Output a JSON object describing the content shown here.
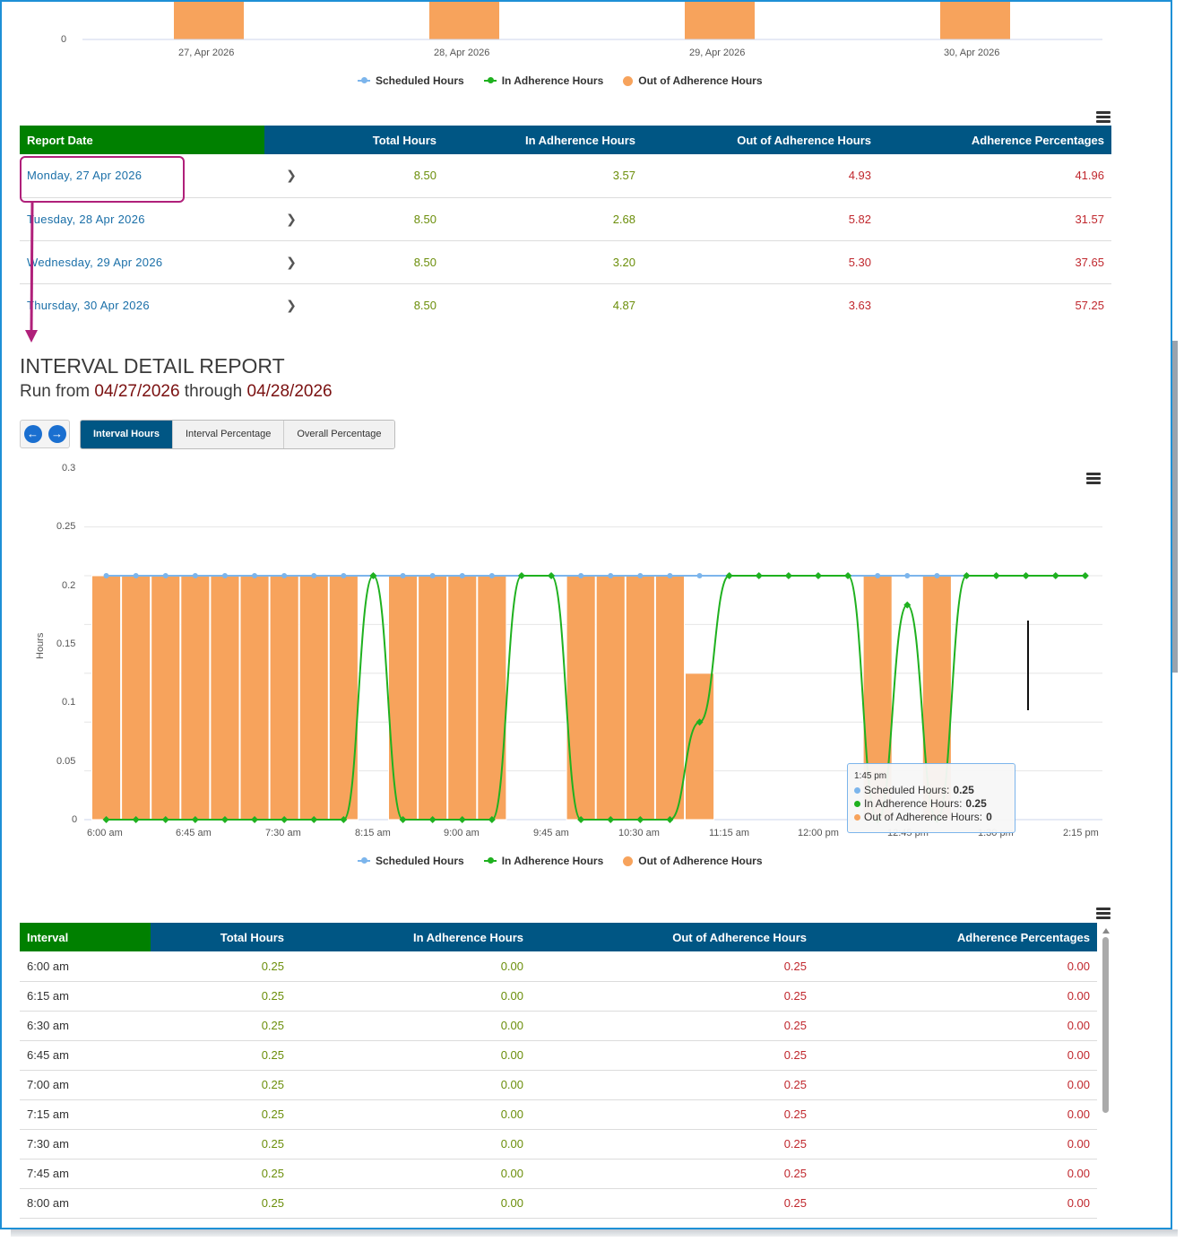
{
  "top_chart": {
    "y_tick": "0",
    "x_labels": [
      "27, Apr 2026",
      "28, Apr 2026",
      "29, Apr 2026",
      "30, Apr 2026"
    ]
  },
  "legend": {
    "scheduled": "Scheduled Hours",
    "in_adherence": "In Adherence Hours",
    "out_adherence": "Out of Adherence Hours"
  },
  "colors": {
    "scheduled": "#7cb5ec",
    "in_adherence": "#1fb11f",
    "out_adherence": "#f7a35c",
    "header_blue": "#005684",
    "header_green": "#008000"
  },
  "summary_table": {
    "headers": [
      "Report Date",
      "Total Hours",
      "In Adherence Hours",
      "Out of Adherence Hours",
      "Adherence Percentages"
    ],
    "rows": [
      {
        "date": "Monday, 27 Apr 2026",
        "total": "8.50",
        "in": "3.57",
        "out": "4.93",
        "pct": "41.96"
      },
      {
        "date": "Tuesday, 28 Apr 2026",
        "total": "8.50",
        "in": "2.68",
        "out": "5.82",
        "pct": "31.57"
      },
      {
        "date": "Wednesday, 29 Apr 2026",
        "total": "8.50",
        "in": "3.20",
        "out": "5.30",
        "pct": "37.65"
      },
      {
        "date": "Thursday, 30 Apr 2026",
        "total": "8.50",
        "in": "4.87",
        "out": "3.63",
        "pct": "57.25"
      }
    ]
  },
  "report": {
    "title": "INTERVAL DETAIL REPORT",
    "run_prefix": "Run from ",
    "start": "04/27/2026",
    "through": " through ",
    "end": "04/28/2026"
  },
  "tabs": [
    "Interval Hours",
    "Interval Percentage",
    "Overall Percentage"
  ],
  "chart_data": {
    "type": "bar",
    "ylabel": "Hours",
    "ylim": [
      0,
      0.3
    ],
    "y_ticks": [
      "0",
      "0.05",
      "0.1",
      "0.15",
      "0.2",
      "0.25",
      "0.3"
    ],
    "x_tick_labels": [
      "6:00 am",
      "6:45 am",
      "7:30 am",
      "8:15 am",
      "9:00 am",
      "9:45 am",
      "10:30 am",
      "11:15 am",
      "12:00 pm",
      "12:45 pm",
      "1:30 pm",
      "2:15 pm"
    ],
    "categories": [
      "6:00 am",
      "6:15 am",
      "6:30 am",
      "6:45 am",
      "7:00 am",
      "7:15 am",
      "7:30 am",
      "7:45 am",
      "8:00 am",
      "8:15 am",
      "8:30 am",
      "8:45 am",
      "9:00 am",
      "9:15 am",
      "9:30 am",
      "9:45 am",
      "10:00 am",
      "10:15 am",
      "10:30 am",
      "10:45 am",
      "11:00 am",
      "11:15 am",
      "11:30 am",
      "11:45 am",
      "12:00 pm",
      "12:15 pm",
      "12:30 pm",
      "12:45 pm",
      "1:00 pm",
      "1:15 pm",
      "1:30 pm",
      "1:45 pm",
      "2:00 pm",
      "2:15 pm"
    ],
    "series": [
      {
        "name": "Scheduled Hours",
        "type": "line",
        "values": [
          0.25,
          0.25,
          0.25,
          0.25,
          0.25,
          0.25,
          0.25,
          0.25,
          0.25,
          0.25,
          0.25,
          0.25,
          0.25,
          0.25,
          0.25,
          0.25,
          0.25,
          0.25,
          0.25,
          0.25,
          0.25,
          0.25,
          0.25,
          0.25,
          0.25,
          0.25,
          0.25,
          0.25,
          0.25,
          0.25,
          0.25,
          0.25,
          0.25,
          0.25
        ]
      },
      {
        "name": "In Adherence Hours",
        "type": "spline",
        "values": [
          0,
          0,
          0,
          0,
          0,
          0,
          0,
          0,
          0,
          0.25,
          0,
          0,
          0,
          0,
          0.25,
          0.25,
          0,
          0,
          0,
          0,
          0.1,
          0.25,
          0.25,
          0.25,
          0.25,
          0.25,
          0,
          0.22,
          0,
          0.25,
          0.25,
          0.25,
          0.25,
          0.25
        ]
      },
      {
        "name": "Out of Adherence Hours",
        "type": "column",
        "values": [
          0.25,
          0.25,
          0.25,
          0.25,
          0.25,
          0.25,
          0.25,
          0.25,
          0.25,
          0,
          0.25,
          0.25,
          0.25,
          0.25,
          0,
          0,
          0.25,
          0.25,
          0.25,
          0.25,
          0.15,
          0,
          0,
          0,
          0,
          0,
          0.25,
          0,
          0.25,
          0,
          0,
          0,
          0,
          0
        ]
      }
    ]
  },
  "tooltip": {
    "time": "1:45 pm",
    "scheduled_label": "Scheduled Hours: ",
    "scheduled_value": "0.25",
    "in_label": "In Adherence Hours: ",
    "in_value": "0.25",
    "out_label": "Out of Adherence Hours: ",
    "out_value": "0"
  },
  "interval_table": {
    "headers": [
      "Interval",
      "Total Hours",
      "In Adherence Hours",
      "Out of Adherence Hours",
      "Adherence Percentages"
    ],
    "rows": [
      {
        "interval": "6:00 am",
        "total": "0.25",
        "in": "0.00",
        "out": "0.25",
        "pct": "0.00"
      },
      {
        "interval": "6:15 am",
        "total": "0.25",
        "in": "0.00",
        "out": "0.25",
        "pct": "0.00"
      },
      {
        "interval": "6:30 am",
        "total": "0.25",
        "in": "0.00",
        "out": "0.25",
        "pct": "0.00"
      },
      {
        "interval": "6:45 am",
        "total": "0.25",
        "in": "0.00",
        "out": "0.25",
        "pct": "0.00"
      },
      {
        "interval": "7:00 am",
        "total": "0.25",
        "in": "0.00",
        "out": "0.25",
        "pct": "0.00"
      },
      {
        "interval": "7:15 am",
        "total": "0.25",
        "in": "0.00",
        "out": "0.25",
        "pct": "0.00"
      },
      {
        "interval": "7:30 am",
        "total": "0.25",
        "in": "0.00",
        "out": "0.25",
        "pct": "0.00"
      },
      {
        "interval": "7:45 am",
        "total": "0.25",
        "in": "0.00",
        "out": "0.25",
        "pct": "0.00"
      },
      {
        "interval": "8:00 am",
        "total": "0.25",
        "in": "0.00",
        "out": "0.25",
        "pct": "0.00"
      }
    ]
  }
}
